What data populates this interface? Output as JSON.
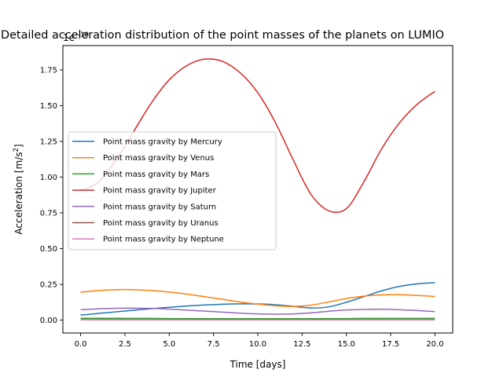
{
  "chart_data": {
    "type": "line",
    "title": "Detailed acceleration distribution of the point masses of the planets on LUMIO",
    "xlabel": "Time [days]",
    "ylabel_main": "Acceleration [m/s",
    "ylabel_sup": "2",
    "ylabel_end": "]",
    "offset_text_base": "1e",
    "offset_text_exp": "−10",
    "xlim": [
      -1.0,
      21.0
    ],
    "ylim": [
      -0.09,
      1.92
    ],
    "xticks": [
      0.0,
      2.5,
      5.0,
      7.5,
      10.0,
      12.5,
      15.0,
      17.5,
      20.0
    ],
    "xtick_labels": [
      "0.0",
      "2.5",
      "5.0",
      "7.5",
      "10.0",
      "12.5",
      "15.0",
      "17.5",
      "20.0"
    ],
    "yticks": [
      0.0,
      0.25,
      0.5,
      0.75,
      1.0,
      1.25,
      1.5,
      1.75
    ],
    "ytick_labels": [
      "0.00",
      "0.25",
      "0.50",
      "0.75",
      "1.00",
      "1.25",
      "1.50",
      "1.75"
    ],
    "grid": false,
    "legend_position": "center-left",
    "x": [
      0,
      1,
      2,
      3,
      4,
      5,
      6,
      7,
      8,
      9,
      10,
      11,
      12,
      13,
      14,
      15,
      16,
      17,
      18,
      19,
      20
    ],
    "series": [
      {
        "name": "Point mass gravity by Mercury",
        "color": "#1f77b4",
        "values": [
          0.035,
          0.047,
          0.058,
          0.069,
          0.08,
          0.09,
          0.099,
          0.106,
          0.111,
          0.114,
          0.113,
          0.108,
          0.097,
          0.085,
          0.093,
          0.125,
          0.165,
          0.205,
          0.236,
          0.254,
          0.262
        ]
      },
      {
        "name": "Point mass gravity by Venus",
        "color": "#ff7f0e",
        "values": [
          0.195,
          0.207,
          0.213,
          0.213,
          0.207,
          0.196,
          0.182,
          0.164,
          0.146,
          0.127,
          0.112,
          0.101,
          0.096,
          0.105,
          0.127,
          0.151,
          0.168,
          0.176,
          0.178,
          0.173,
          0.165
        ]
      },
      {
        "name": "Point mass gravity by Mars",
        "color": "#2ca02c",
        "values": [
          0.013,
          0.013,
          0.013,
          0.012,
          0.012,
          0.011,
          0.011,
          0.01,
          0.01,
          0.01,
          0.01,
          0.01,
          0.01,
          0.01,
          0.011,
          0.011,
          0.012,
          0.012,
          0.012,
          0.012,
          0.012
        ]
      },
      {
        "name": "Point mass gravity by Jupiter",
        "color": "#d62728",
        "values": [
          0.905,
          0.965,
          1.12,
          1.32,
          1.52,
          1.68,
          1.78,
          1.825,
          1.81,
          1.73,
          1.59,
          1.38,
          1.12,
          0.88,
          0.765,
          0.78,
          0.97,
          1.2,
          1.38,
          1.51,
          1.6
        ]
      },
      {
        "name": "Point mass gravity by Saturn",
        "color": "#9467bd",
        "values": [
          0.073,
          0.079,
          0.083,
          0.084,
          0.082,
          0.077,
          0.07,
          0.063,
          0.056,
          0.049,
          0.044,
          0.042,
          0.044,
          0.051,
          0.062,
          0.071,
          0.075,
          0.076,
          0.073,
          0.067,
          0.06
        ]
      },
      {
        "name": "Point mass gravity by Uranus",
        "color": "#8c564b",
        "values": [
          0.004,
          0.004,
          0.004,
          0.004,
          0.004,
          0.004,
          0.004,
          0.004,
          0.004,
          0.004,
          0.004,
          0.004,
          0.004,
          0.004,
          0.004,
          0.004,
          0.004,
          0.004,
          0.004,
          0.004,
          0.004
        ]
      },
      {
        "name": "Point mass gravity by Neptune",
        "color": "#e377c2",
        "values": [
          0.002,
          0.002,
          0.002,
          0.002,
          0.002,
          0.002,
          0.002,
          0.002,
          0.002,
          0.002,
          0.002,
          0.002,
          0.002,
          0.002,
          0.002,
          0.002,
          0.002,
          0.002,
          0.002,
          0.002,
          0.002
        ]
      }
    ]
  }
}
